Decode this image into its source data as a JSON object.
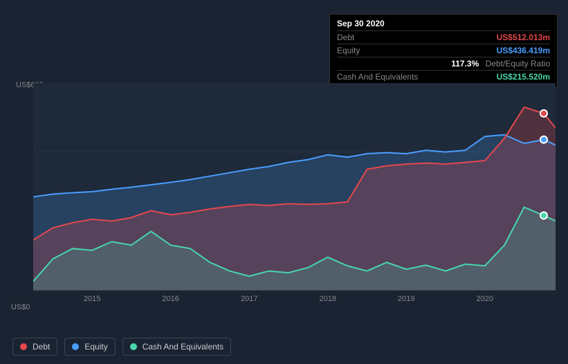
{
  "tooltip": {
    "date": "Sep 30 2020",
    "rows": [
      {
        "label": "Debt",
        "value": "US$512.013m",
        "color": "#e5484d"
      },
      {
        "label": "Equity",
        "value": "US$436.419m",
        "color": "#4a9eff"
      },
      {
        "label": "",
        "value": "117.3%",
        "suffix": "Debt/Equity Ratio",
        "color": "#ffffff"
      },
      {
        "label": "Cash And Equivalents",
        "value": "US$215.520m",
        "color": "#47d7ac"
      }
    ]
  },
  "chart": {
    "type": "area",
    "background_color": "#1e2a3a",
    "page_background": "#1a2332",
    "grid_color": "#444444",
    "text_color": "#888888",
    "y_axis": {
      "min": 0,
      "max": 600,
      "labels": {
        "top": "US$600m",
        "bottom": "US$0"
      }
    },
    "x_axis": {
      "min": 2014.25,
      "max": 2020.9,
      "ticks": [
        2015,
        2016,
        2017,
        2018,
        2019,
        2020
      ]
    },
    "label_fontsize": 11,
    "cursor_x": 2020.75,
    "series": [
      {
        "name": "Debt",
        "color": "#e5484d",
        "fill_opacity": 0.25,
        "line_width": 2,
        "data": [
          [
            2014.25,
            145
          ],
          [
            2014.5,
            180
          ],
          [
            2014.75,
            195
          ],
          [
            2015.0,
            205
          ],
          [
            2015.25,
            200
          ],
          [
            2015.5,
            210
          ],
          [
            2015.75,
            230
          ],
          [
            2016.0,
            218
          ],
          [
            2016.25,
            225
          ],
          [
            2016.5,
            235
          ],
          [
            2016.75,
            242
          ],
          [
            2017.0,
            248
          ],
          [
            2017.25,
            245
          ],
          [
            2017.5,
            250
          ],
          [
            2017.75,
            248
          ],
          [
            2018.0,
            250
          ],
          [
            2018.25,
            255
          ],
          [
            2018.5,
            350
          ],
          [
            2018.75,
            360
          ],
          [
            2019.0,
            365
          ],
          [
            2019.25,
            368
          ],
          [
            2019.5,
            365
          ],
          [
            2019.75,
            370
          ],
          [
            2020.0,
            375
          ],
          [
            2020.25,
            440
          ],
          [
            2020.5,
            530
          ],
          [
            2020.75,
            512
          ],
          [
            2020.9,
            470
          ]
        ]
      },
      {
        "name": "Equity",
        "color": "#4a9eff",
        "fill_opacity": 0.2,
        "line_width": 2,
        "data": [
          [
            2014.25,
            270
          ],
          [
            2014.5,
            278
          ],
          [
            2014.75,
            282
          ],
          [
            2015.0,
            285
          ],
          [
            2015.25,
            292
          ],
          [
            2015.5,
            298
          ],
          [
            2015.75,
            305
          ],
          [
            2016.0,
            312
          ],
          [
            2016.25,
            320
          ],
          [
            2016.5,
            330
          ],
          [
            2016.75,
            340
          ],
          [
            2017.0,
            350
          ],
          [
            2017.25,
            358
          ],
          [
            2017.5,
            370
          ],
          [
            2017.75,
            378
          ],
          [
            2018.0,
            392
          ],
          [
            2018.25,
            385
          ],
          [
            2018.5,
            395
          ],
          [
            2018.75,
            398
          ],
          [
            2019.0,
            395
          ],
          [
            2019.25,
            405
          ],
          [
            2019.5,
            400
          ],
          [
            2019.75,
            405
          ],
          [
            2020.0,
            445
          ],
          [
            2020.25,
            450
          ],
          [
            2020.5,
            425
          ],
          [
            2020.75,
            436
          ],
          [
            2020.9,
            420
          ]
        ]
      },
      {
        "name": "Cash And Equivalents",
        "color": "#47d7ac",
        "fill_opacity": 0.2,
        "line_width": 2,
        "data": [
          [
            2014.25,
            25
          ],
          [
            2014.5,
            90
          ],
          [
            2014.75,
            120
          ],
          [
            2015.0,
            115
          ],
          [
            2015.25,
            140
          ],
          [
            2015.5,
            130
          ],
          [
            2015.75,
            170
          ],
          [
            2016.0,
            130
          ],
          [
            2016.25,
            120
          ],
          [
            2016.5,
            80
          ],
          [
            2016.75,
            55
          ],
          [
            2017.0,
            40
          ],
          [
            2017.25,
            55
          ],
          [
            2017.5,
            50
          ],
          [
            2017.75,
            65
          ],
          [
            2018.0,
            95
          ],
          [
            2018.25,
            70
          ],
          [
            2018.5,
            55
          ],
          [
            2018.75,
            80
          ],
          [
            2019.0,
            60
          ],
          [
            2019.25,
            72
          ],
          [
            2019.5,
            55
          ],
          [
            2019.75,
            75
          ],
          [
            2020.0,
            70
          ],
          [
            2020.25,
            130
          ],
          [
            2020.5,
            240
          ],
          [
            2020.75,
            216
          ],
          [
            2020.9,
            200
          ]
        ]
      }
    ],
    "legend": [
      {
        "label": "Debt",
        "color": "#e5484d"
      },
      {
        "label": "Equity",
        "color": "#4a9eff"
      },
      {
        "label": "Cash And Equivalents",
        "color": "#47d7ac"
      }
    ]
  }
}
